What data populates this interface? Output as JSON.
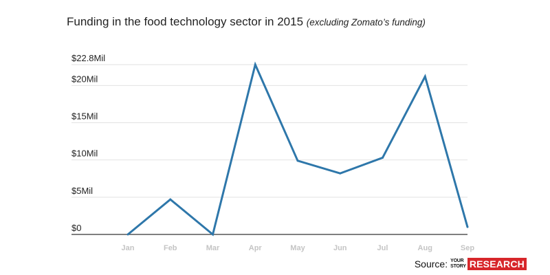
{
  "header": {
    "title": "Funding in the food technology sector in 2015",
    "subtitle": "(excluding Zomato’s funding)"
  },
  "source": {
    "label": "Source:",
    "logo_line1": "YOUR",
    "logo_line2": "STORY",
    "logo_research": "RESEARCH",
    "logo_color": "#d7262a"
  },
  "chart_data": {
    "type": "line",
    "categories": [
      "Jan",
      "Feb",
      "Mar",
      "Apr",
      "May",
      "Jun",
      "Jul",
      "Aug",
      "Sep"
    ],
    "series": [
      {
        "values": [
          0,
          4.7,
          0,
          22.8,
          9.9,
          8.2,
          10.3,
          21.2,
          1.0
        ],
        "color": "#2e77aa"
      }
    ],
    "y_ticks": [
      {
        "value": 0,
        "label": "$0"
      },
      {
        "value": 5,
        "label": "$5Mil"
      },
      {
        "value": 10,
        "label": "$10Mil"
      },
      {
        "value": 15,
        "label": "$15Mil"
      },
      {
        "value": 20,
        "label": "$20Mil"
      },
      {
        "value": 22.8,
        "label": "$22.8Mil"
      }
    ],
    "ylim": [
      0,
      22.8
    ],
    "grid": true,
    "legend": "none"
  }
}
